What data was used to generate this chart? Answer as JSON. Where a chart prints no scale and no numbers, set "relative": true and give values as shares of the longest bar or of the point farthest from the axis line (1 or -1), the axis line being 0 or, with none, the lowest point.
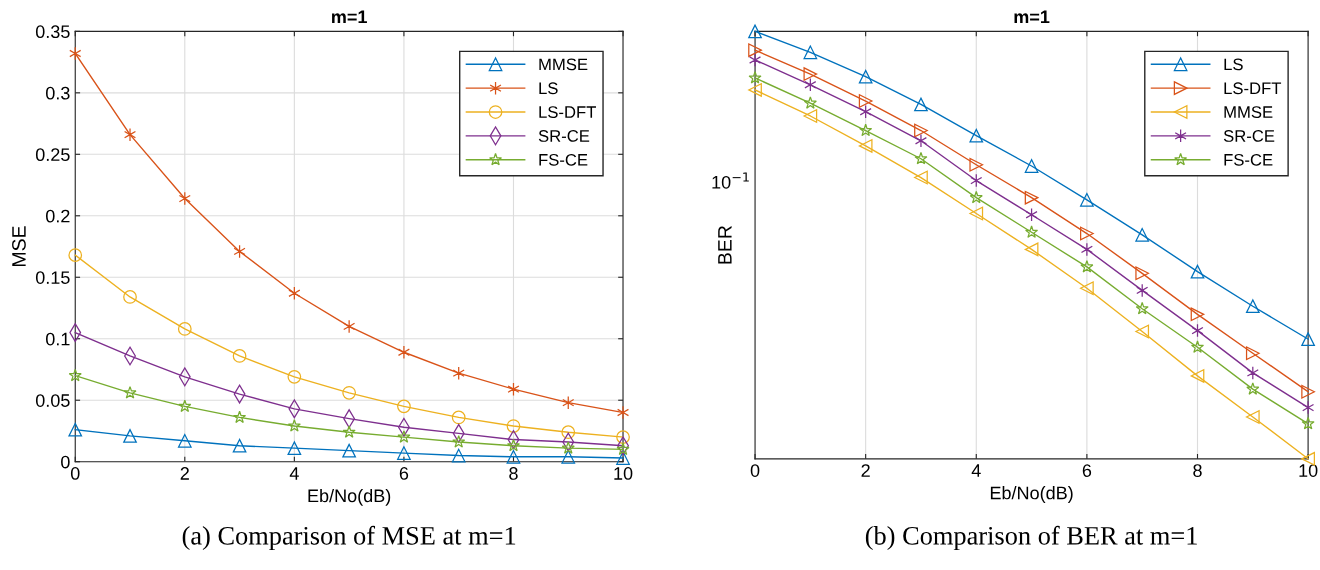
{
  "chart_data": [
    {
      "type": "line",
      "title": "m=1",
      "xlabel": "Eb/No(dB)",
      "ylabel": "MSE",
      "x": [
        0,
        1,
        2,
        3,
        4,
        5,
        6,
        7,
        8,
        9,
        10
      ],
      "xlim": [
        0,
        10
      ],
      "xticks": [
        0,
        2,
        4,
        6,
        8,
        10
      ],
      "ylim": [
        0,
        0.35
      ],
      "yticks": [
        0,
        0.05,
        0.1,
        0.15,
        0.2,
        0.25,
        0.3,
        0.35
      ],
      "grid": true,
      "legend": "top right",
      "line_style": "solid",
      "series": [
        {
          "name": "MMSE",
          "color": "#0072bd",
          "marker": "triangle",
          "values": [
            0.026,
            0.021,
            0.017,
            0.013,
            0.011,
            0.009,
            0.007,
            0.005,
            0.004,
            0.004,
            0.003
          ]
        },
        {
          "name": "LS",
          "color": "#d95319",
          "marker": "cross",
          "values": [
            0.332,
            0.266,
            0.214,
            0.171,
            0.137,
            0.11,
            0.089,
            0.072,
            0.059,
            0.048,
            0.04
          ]
        },
        {
          "name": "LS-DFT",
          "color": "#edb120",
          "marker": "circle",
          "values": [
            0.168,
            0.134,
            0.108,
            0.086,
            0.069,
            0.056,
            0.045,
            0.036,
            0.029,
            0.024,
            0.02
          ]
        },
        {
          "name": "SR-CE",
          "color": "#7e2f8e",
          "marker": "diamond",
          "values": [
            0.105,
            0.086,
            0.069,
            0.055,
            0.043,
            0.035,
            0.028,
            0.023,
            0.018,
            0.016,
            0.013
          ]
        },
        {
          "name": "FS-CE",
          "color": "#77ac30",
          "marker": "star",
          "values": [
            0.07,
            0.056,
            0.045,
            0.036,
            0.029,
            0.024,
            0.02,
            0.016,
            0.013,
            0.011,
            0.01
          ]
        }
      ],
      "annotations": [
        "(a) Comparison of MSE at m=1"
      ]
    },
    {
      "type": "line",
      "title": "m=1",
      "xlabel": "Eb/No(dB)",
      "ylabel": "BER",
      "relative": true,
      "x": [
        0,
        1,
        2,
        3,
        4,
        5,
        6,
        7,
        8,
        9,
        10
      ],
      "xlim": [
        0,
        10
      ],
      "xticks": [
        0,
        2,
        4,
        6,
        8,
        10
      ],
      "grid": "x",
      "legend": "top right",
      "line_style": "solid",
      "series": [
        {
          "name": "LS",
          "color": "#0072bd",
          "marker": "triangle",
          "values": [
            1,
            0.951,
            0.894,
            0.829,
            0.756,
            0.685,
            0.606,
            0.524,
            0.438,
            0.357,
            0.28
          ]
        },
        {
          "name": "LS-DFT",
          "color": "#d95319",
          "marker": "triangle-right",
          "values": [
            0.956,
            0.9,
            0.837,
            0.768,
            0.688,
            0.611,
            0.527,
            0.434,
            0.338,
            0.247,
            0.157
          ]
        },
        {
          "name": "MMSE",
          "color": "#edb120",
          "marker": "triangle-left",
          "values": [
            0.863,
            0.802,
            0.732,
            0.658,
            0.574,
            0.49,
            0.399,
            0.298,
            0.194,
            0.098,
            0
          ]
        },
        {
          "name": "SR-CE",
          "color": "#7e2f8e",
          "marker": "cross",
          "values": [
            0.933,
            0.875,
            0.812,
            0.744,
            0.651,
            0.571,
            0.49,
            0.394,
            0.3,
            0.201,
            0.12
          ]
        },
        {
          "name": "FS-CE",
          "color": "#77ac30",
          "marker": "star",
          "values": [
            0.891,
            0.832,
            0.768,
            0.702,
            0.611,
            0.53,
            0.449,
            0.351,
            0.261,
            0.163,
            0.082
          ]
        }
      ],
      "annotations": [
        "10$^{−1}$",
        "(b) Comparison of BER at m=1"
      ]
    }
  ]
}
